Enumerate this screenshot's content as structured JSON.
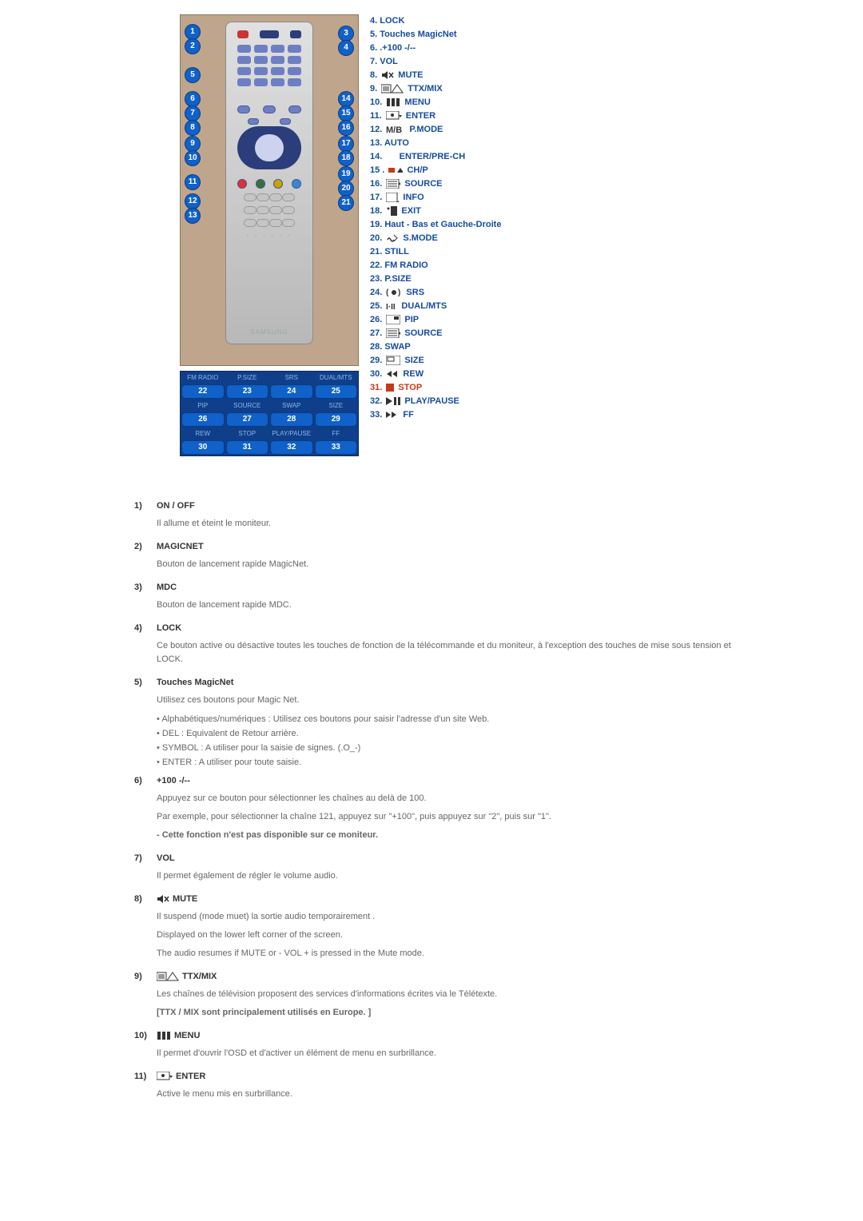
{
  "colors": {
    "accent": "#144b9e",
    "callout": "#1061c9",
    "bg_remote": "#bfa58c",
    "red": "#c43a1c",
    "text": "#666",
    "text_dark": "#333"
  },
  "legend": [
    {
      "n": "4",
      "label": "LOCK"
    },
    {
      "n": "5",
      "label": "Touches MagicNet"
    },
    {
      "n": "6",
      "label": ".+100 -/--"
    },
    {
      "n": "7",
      "label": "VOL"
    },
    {
      "n": "8",
      "label": "MUTE",
      "icon": "mute"
    },
    {
      "n": "9",
      "label": "TTX/MIX",
      "icon": "ttx"
    },
    {
      "n": "10",
      "label": "MENU",
      "icon": "menu"
    },
    {
      "n": "11",
      "label": "ENTER",
      "icon": "enter"
    },
    {
      "n": "12",
      "label": "P.MODE",
      "icon": "mb"
    },
    {
      "n": "13",
      "label": "AUTO"
    },
    {
      "n": "14",
      "label": "ENTER/PRE-CH",
      "indent": true
    },
    {
      "n": "15",
      "label": "CH/P",
      "icon": "chp",
      "dot": true
    },
    {
      "n": "16",
      "label": "SOURCE",
      "icon": "source"
    },
    {
      "n": "17",
      "label": "INFO",
      "icon": "info"
    },
    {
      "n": "18",
      "label": "EXIT",
      "icon": "exit"
    },
    {
      "n": "19",
      "label": "Haut - Bas et Gauche-Droite"
    },
    {
      "n": "20",
      "label": "S.MODE",
      "icon": "smode"
    },
    {
      "n": "21",
      "label": "STILL"
    },
    {
      "n": "22",
      "label": "FM RADIO"
    },
    {
      "n": "23",
      "label": "P.SIZE"
    },
    {
      "n": "24",
      "label": "SRS",
      "icon": "srs"
    },
    {
      "n": "25",
      "label": "DUAL/MTS",
      "icon": "dual"
    },
    {
      "n": "26",
      "label": "PIP",
      "icon": "pip"
    },
    {
      "n": "27",
      "label": "SOURCE",
      "icon": "source"
    },
    {
      "n": "28",
      "label": "SWAP"
    },
    {
      "n": "29",
      "label": "SIZE",
      "icon": "size"
    },
    {
      "n": "30",
      "label": "REW",
      "icon": "rew"
    },
    {
      "n": "31",
      "label": "STOP",
      "icon": "stop",
      "red": true
    },
    {
      "n": "32",
      "label": "PLAY/PAUSE",
      "icon": "playpause"
    },
    {
      "n": "33",
      "label": "FF",
      "icon": "ff"
    }
  ],
  "bottomGrid": {
    "headers1": [
      "FM RADIO",
      "P.SIZE",
      "SRS",
      "DUAL/MTS"
    ],
    "row1": [
      "22",
      "23",
      "24",
      "25"
    ],
    "headers2": [
      "PIP",
      "SOURCE",
      "SWAP",
      "SIZE"
    ],
    "row2": [
      "26",
      "27",
      "28",
      "29"
    ],
    "headers3": [
      "REW",
      "STOP",
      "PLAY/PAUSE",
      "FF"
    ],
    "row3": [
      "30",
      "31",
      "32",
      "33"
    ]
  },
  "desc": [
    {
      "n": "1)",
      "title": "ON / OFF",
      "paras": [
        "Il allume et éteint le moniteur."
      ]
    },
    {
      "n": "2)",
      "title": "MAGICNET",
      "paras": [
        "Bouton de lancement rapide MagicNet."
      ]
    },
    {
      "n": "3)",
      "title": "MDC",
      "paras": [
        "Bouton de lancement rapide MDC."
      ]
    },
    {
      "n": "4)",
      "title": "LOCK",
      "paras": [
        "Ce bouton active ou désactive toutes les touches de fonction de la télécommande et du moniteur, à l'exception des touches de mise sous tension et LOCK."
      ]
    },
    {
      "n": "5)",
      "title": "Touches MagicNet",
      "paras": [
        "Utilisez ces boutons pour Magic Net."
      ],
      "list": [
        "Alphabétiques/numériques : Utilisez ces boutons pour saisir l'adresse d'un site Web.",
        "DEL : Equivalent de Retour arrière.",
        "SYMBOL : A utiliser pour la saisie de signes. (.O_-)",
        "ENTER : A utiliser pour toute saisie."
      ]
    },
    {
      "n": "6)",
      "title": "+100 -/--",
      "paras": [
        "Appuyez sur ce bouton pour sélectionner les chaînes au delà de 100.",
        "Par exemple, pour sélectionner la chaîne 121, appuyez sur \"+100\", puis appuyez sur \"2\", puis sur \"1\"."
      ],
      "boldPara": "- Cette fonction n'est pas disponible sur ce moniteur."
    },
    {
      "n": "7)",
      "title": "VOL",
      "paras": [
        "Il permet également de régler le volume audio."
      ]
    },
    {
      "n": "8)",
      "title": "MUTE",
      "icon": "mute",
      "paras": [
        "Il suspend (mode muet) la sortie audio temporairement .",
        "Displayed on the lower left corner of the screen.",
        "The audio resumes if MUTE or - VOL + is pressed in the Mute mode."
      ]
    },
    {
      "n": "9)",
      "title": "TTX/MIX",
      "icon": "ttx",
      "paras": [
        "Les chaînes de télévision proposent des services d'informations écrites via le Télétexte."
      ],
      "boldPara": "[TTX / MIX sont principalement utilisés en Europe. ]"
    },
    {
      "n": "10)",
      "title": "MENU",
      "icon": "menu",
      "paras": [
        "Il permet d'ouvrir l'OSD et d'activer un élément de menu en surbrillance."
      ]
    },
    {
      "n": "11)",
      "title": "ENTER",
      "icon": "enter",
      "paras": [
        "Active le menu mis en surbrillance."
      ]
    }
  ],
  "labels": {
    "dots": ". . .\n. . .",
    "brand": "SAMSUNG"
  }
}
